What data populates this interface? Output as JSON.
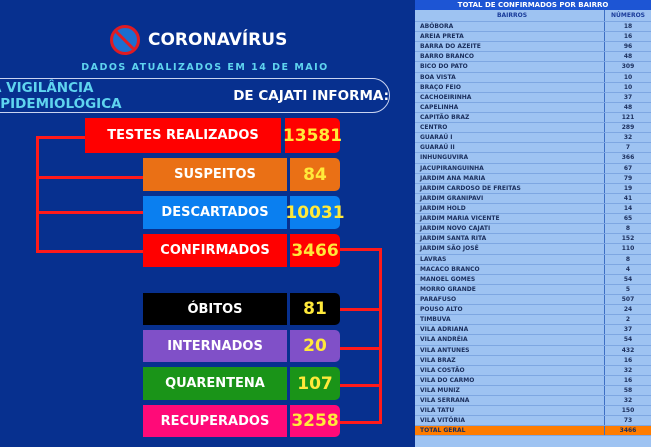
{
  "header": {
    "title": "CORONAVÍRUS",
    "date_text": "DADOS ATUALIZADOS EM 14 DE MAIO",
    "banner_highlight": "A VIGILÂNCIA EPIDEMIOLÓGICA",
    "banner_rest": " DE CAJATI INFORMA:"
  },
  "stats": [
    {
      "label": "TESTES REALIZADOS",
      "value": "13581",
      "color": "#ff0000"
    },
    {
      "label": "SUSPEITOS",
      "value": "84",
      "color": "#ea7015"
    },
    {
      "label": "DESCARTADOS",
      "value": "10031",
      "color": "#0a7ff0"
    },
    {
      "label": "CONFIRMADOS",
      "value": "3466",
      "color": "#ff0000"
    },
    {
      "label": "ÓBITOS",
      "value": "81",
      "color": "#000000"
    },
    {
      "label": "INTERNADOS",
      "value": "20",
      "color": "#8050c8"
    },
    {
      "label": "QUARENTENA",
      "value": "107",
      "color": "#1a9418"
    },
    {
      "label": "RECUPERADOS",
      "value": "3258",
      "color": "#ff0a78"
    }
  ],
  "table": {
    "title": "TOTAL DE CONFIRMADOS POR BAIRRO",
    "col_name": "BAIRROS",
    "col_value": "NÚMEROS",
    "rows": [
      [
        "ABÓBORA",
        "18"
      ],
      [
        "AREIA PRETA",
        "16"
      ],
      [
        "BARRA DO AZEITE",
        "96"
      ],
      [
        "BARRO BRANCO",
        "48"
      ],
      [
        "BICO DO PATO",
        "309"
      ],
      [
        "BOA VISTA",
        "10"
      ],
      [
        "BRAÇO FEIO",
        "10"
      ],
      [
        "CACHOEIRINHA",
        "37"
      ],
      [
        "CAPELINHA",
        "48"
      ],
      [
        "CAPITÃO BRAZ",
        "121"
      ],
      [
        "CENTRO",
        "289"
      ],
      [
        "GUARAÚ I",
        "32"
      ],
      [
        "GUARAÚ II",
        "7"
      ],
      [
        "INHUNGUVIRA",
        "366"
      ],
      [
        "JACUPIRANGUINHA",
        "67"
      ],
      [
        "JARDIM ANA MARIA",
        "79"
      ],
      [
        "JARDIM CARDOSO DE FREITAS",
        "19"
      ],
      [
        "JARDIM GRANIPAVI",
        "41"
      ],
      [
        "JARDIM HOLD",
        "14"
      ],
      [
        "JARDIM MARIA VICENTE",
        "65"
      ],
      [
        "JARDIM NOVO CAJATI",
        "8"
      ],
      [
        "JARDIM SANTA RITA",
        "152"
      ],
      [
        "JARDIM SÃO JOSÉ",
        "110"
      ],
      [
        "LAVRAS",
        "8"
      ],
      [
        "MACACO BRANCO",
        "4"
      ],
      [
        "MANOEL GOMES",
        "54"
      ],
      [
        "MORRO GRANDE",
        "5"
      ],
      [
        "PARAFUSO",
        "507"
      ],
      [
        "POUSO ALTO",
        "24"
      ],
      [
        "TIMBUVA",
        "2"
      ],
      [
        "VILA ADRIANA",
        "37"
      ],
      [
        "VILA ANDRÉIA",
        "54"
      ],
      [
        "VILA ANTUNES",
        "432"
      ],
      [
        "VILA BRAZ",
        "16"
      ],
      [
        "VILA COSTÃO",
        "32"
      ],
      [
        "VILA DO CARMO",
        "16"
      ],
      [
        "VILA MUNIZ",
        "58"
      ],
      [
        "VILA SERRANA",
        "32"
      ],
      [
        "VILA TATU",
        "150"
      ],
      [
        "VILA VITÓRIA",
        "73"
      ]
    ],
    "total_label": "TOTAL GERAL",
    "total_value": "3466"
  }
}
